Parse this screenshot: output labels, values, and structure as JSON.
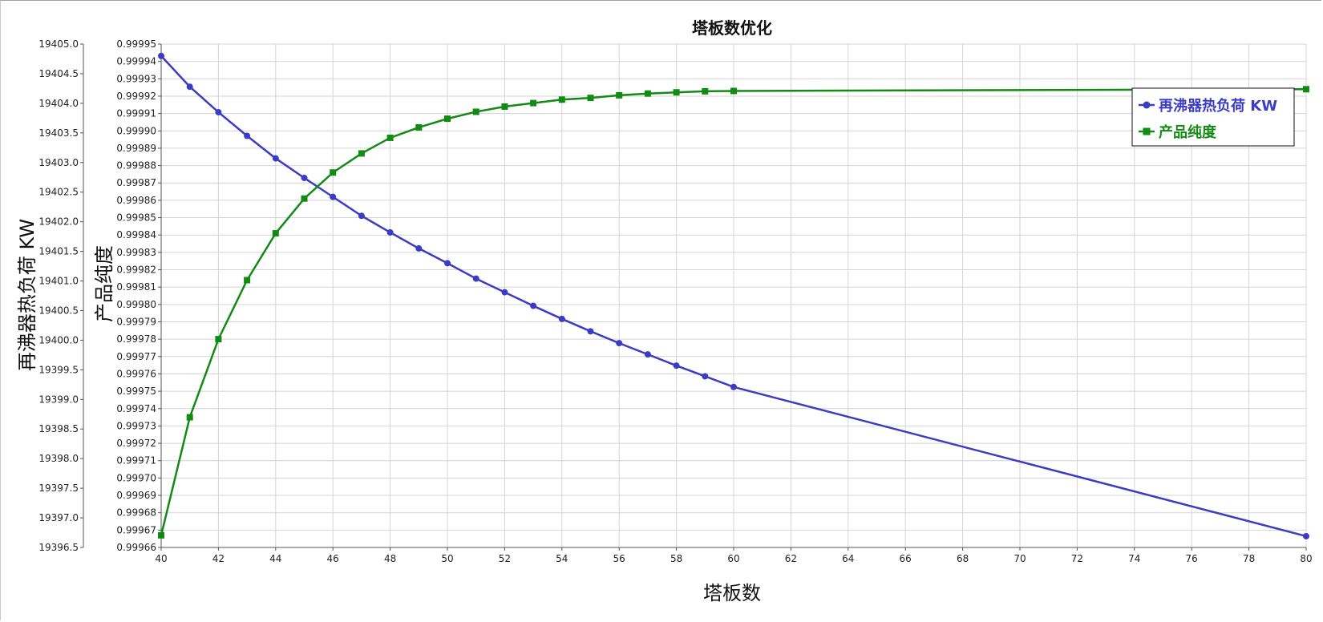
{
  "chart_data": {
    "type": "line",
    "title": "塔板数优化",
    "xlabel": "塔板数",
    "ylabel_left": "再沸器热负荷 KW",
    "ylabel_right": "产品纯度",
    "xlim": [
      40,
      80
    ],
    "ylim_left": [
      19396.5,
      19405.0
    ],
    "ylim_right": [
      0.99966,
      0.99995
    ],
    "grid": true,
    "legend_position": "top-right",
    "x_ticks": [
      "40",
      "42",
      "44",
      "46",
      "48",
      "50",
      "52",
      "54",
      "56",
      "58",
      "60",
      "62",
      "64",
      "66",
      "68",
      "70",
      "72",
      "74",
      "76",
      "78",
      "80"
    ],
    "left_ticks": [
      "19405.0",
      "19404.5",
      "19404.0",
      "19403.5",
      "19403.0",
      "19402.5",
      "19402.0",
      "19401.5",
      "19401.0",
      "19400.5",
      "19400.0",
      "19399.5",
      "19399.0",
      "19398.5",
      "19398.0",
      "19397.5",
      "19397.0",
      "19396.5"
    ],
    "right_ticks": [
      "0.99995",
      "0.99994",
      "0.99993",
      "0.99992",
      "0.99991",
      "0.99990",
      "0.99989",
      "0.99988",
      "0.99987",
      "0.99986",
      "0.99985",
      "0.99984",
      "0.99983",
      "0.99982",
      "0.99981",
      "0.99980",
      "0.99979",
      "0.99978",
      "0.99977",
      "0.99976",
      "0.99975",
      "0.99974",
      "0.99973",
      "0.99972",
      "0.99971",
      "0.99970",
      "0.99969",
      "0.99968",
      "0.99967",
      "0.99966"
    ],
    "series": [
      {
        "name": "再沸器热负荷 KW",
        "axis": "left",
        "color": "#3b3bc4",
        "marker": "circle",
        "x": [
          40,
          41,
          42,
          43,
          44,
          45,
          46,
          47,
          48,
          49,
          50,
          51,
          52,
          53,
          54,
          55,
          56,
          57,
          58,
          59,
          60,
          80
        ],
        "values": [
          19404.8,
          19404.28,
          19403.85,
          19403.45,
          19403.07,
          19402.74,
          19402.42,
          19402.1,
          19401.82,
          19401.55,
          19401.3,
          19401.04,
          19400.81,
          19400.58,
          19400.36,
          19400.15,
          19399.95,
          19399.76,
          19399.57,
          19399.39,
          19399.21,
          19396.69
        ]
      },
      {
        "name": "产品纯度",
        "axis": "right",
        "color": "#138a13",
        "marker": "square",
        "x": [
          40,
          41,
          42,
          43,
          44,
          45,
          46,
          47,
          48,
          49,
          50,
          51,
          52,
          53,
          54,
          55,
          56,
          57,
          58,
          59,
          60,
          80
        ],
        "values": [
          0.999667,
          0.999735,
          0.99978,
          0.999814,
          0.999841,
          0.999861,
          0.999876,
          0.999887,
          0.999896,
          0.999902,
          0.999907,
          0.999911,
          0.999914,
          0.999916,
          0.999918,
          0.999919,
          0.9999205,
          0.9999215,
          0.9999222,
          0.9999228,
          0.999923,
          0.999924
        ]
      }
    ]
  }
}
